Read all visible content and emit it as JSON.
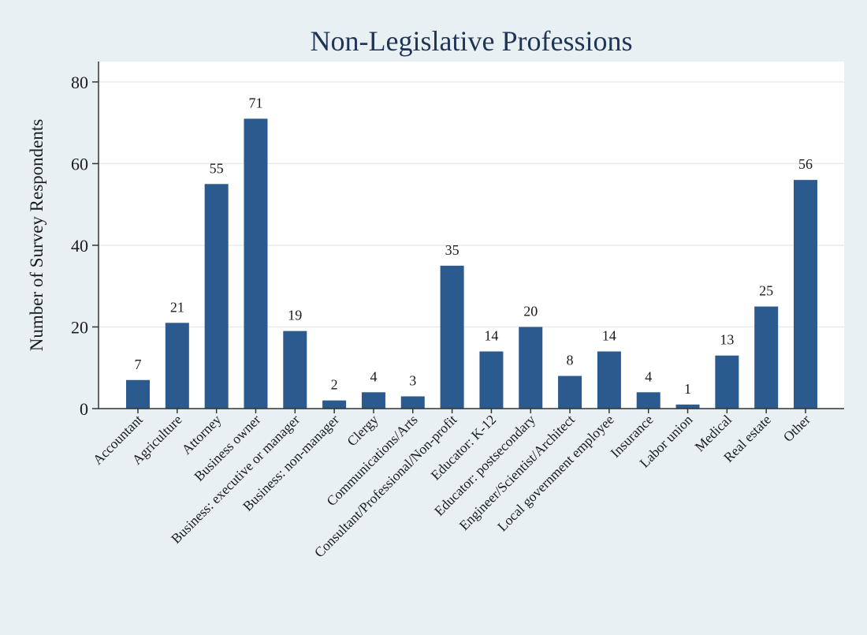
{
  "chart_data": {
    "type": "bar",
    "title": "Non-Legislative Professions",
    "xlabel": "",
    "ylabel": "Number of Survey Respondents",
    "ylim": [
      0,
      85
    ],
    "yticks": [
      0,
      20,
      40,
      60,
      80
    ],
    "grid": true,
    "legend": "none",
    "categories": [
      "Accountant",
      "Agriculture",
      "Attorney",
      "Business owner",
      "Business: executive or manager",
      "Business: non-manager",
      "Clergy",
      "Communications/Arts",
      "Consultant/Professional/Non-profit",
      "Educator: K-12",
      "Educator: postsecondary",
      "Engineer/Scientist/Architect",
      "Local government employee",
      "Insurance",
      "Labor union",
      "Medical",
      "Real estate",
      "Other"
    ],
    "values": [
      7,
      21,
      55,
      71,
      19,
      2,
      4,
      3,
      35,
      14,
      20,
      8,
      14,
      4,
      1,
      13,
      25,
      56
    ],
    "colors": {
      "bar": "#2a5a8e",
      "plot_background": "#ffffff",
      "page_background": "#e9f0f4",
      "grid": "#eaeaea",
      "title": "#1f3556",
      "text": "#1a1a1a"
    }
  }
}
